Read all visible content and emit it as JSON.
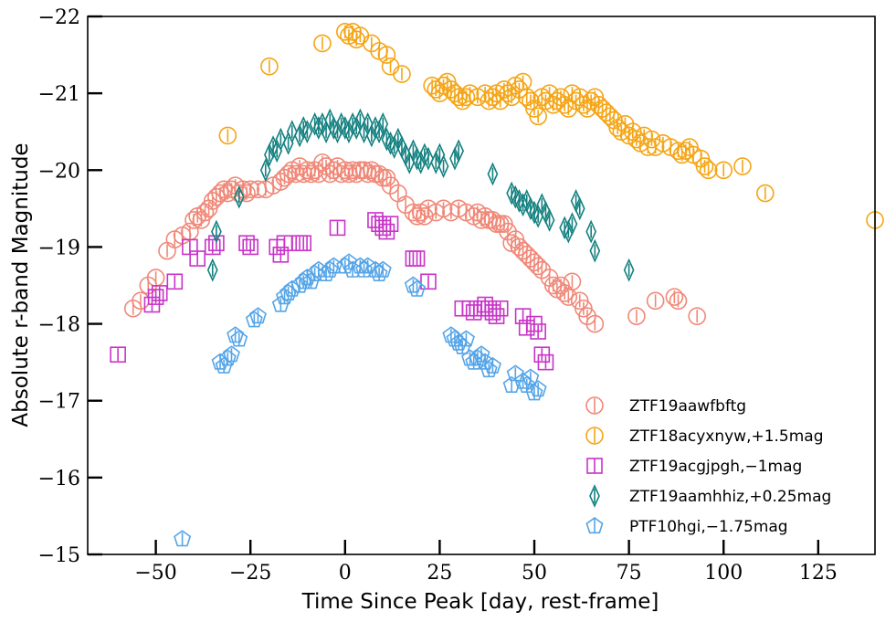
{
  "chart_data": {
    "type": "scatter",
    "title": "",
    "xlabel": "Time Since Peak [day, rest-frame]",
    "ylabel": "Absolute r-band Magnitude",
    "xlim": [
      -68,
      140
    ],
    "ylim": [
      -15,
      -22
    ],
    "y_inverted": true,
    "x_ticks": [
      -50,
      -25,
      0,
      25,
      50,
      75,
      100,
      125
    ],
    "x_tick_labels": [
      "−50",
      "−25",
      "0",
      "25",
      "50",
      "75",
      "100",
      "125"
    ],
    "y_ticks": [
      -22,
      -21,
      -20,
      -19,
      -18,
      -17,
      -16,
      -15
    ],
    "y_tick_labels": [
      "−22",
      "−21",
      "−20",
      "−19",
      "−18",
      "−17",
      "−16",
      "−15"
    ],
    "legend_position": "bottom-right",
    "series": [
      {
        "name": "ZTF19aawfbftg",
        "label": "ZTF19aawfbftg",
        "color": "#f08878",
        "marker": "circle",
        "x": [
          -56,
          -54,
          -52,
          -50,
          -47,
          -45,
          -43,
          -41,
          -40,
          -39,
          -38,
          -37,
          -36,
          -35,
          -34,
          -33,
          -32,
          -31,
          -30,
          -29,
          -28,
          -27,
          -26,
          -25,
          -23,
          -21,
          -19,
          -17,
          -16,
          -15,
          -14,
          -13,
          -12,
          -11,
          -10,
          -9,
          -8,
          -7,
          -6,
          -5,
          -4,
          -3,
          -2,
          -1,
          0,
          1,
          2,
          3,
          4,
          5,
          6,
          7,
          8,
          9,
          10,
          11,
          12,
          14,
          16,
          18,
          19,
          20,
          21,
          22,
          24,
          26,
          28,
          30,
          32,
          34,
          35,
          36,
          37,
          38,
          39,
          40,
          41,
          42,
          43,
          44,
          45,
          46,
          47,
          48,
          49,
          50,
          51,
          52,
          54,
          55,
          56,
          57,
          58,
          59,
          60,
          62,
          63,
          64,
          66,
          77,
          82,
          87,
          88,
          93
        ],
        "y": [
          -18.2,
          -18.3,
          -18.5,
          -18.6,
          -18.95,
          -19.1,
          -19.15,
          -19.2,
          -19.35,
          -19.4,
          -19.35,
          -19.45,
          -19.5,
          -19.6,
          -19.65,
          -19.7,
          -19.75,
          -19.7,
          -19.75,
          -19.8,
          -19.7,
          -19.75,
          -19.7,
          -19.75,
          -19.75,
          -19.75,
          -19.8,
          -19.85,
          -19.9,
          -19.95,
          -20.0,
          -19.95,
          -20.05,
          -19.95,
          -20.0,
          -19.95,
          -20.0,
          -19.95,
          -20.1,
          -20.05,
          -19.95,
          -20.0,
          -20.05,
          -19.95,
          -20.0,
          -19.95,
          -20.0,
          -19.95,
          -20.0,
          -20.0,
          -19.95,
          -20.0,
          -19.95,
          -19.95,
          -19.9,
          -19.9,
          -19.8,
          -19.7,
          -19.55,
          -19.45,
          -19.4,
          -19.45,
          -19.4,
          -19.5,
          -19.45,
          -19.5,
          -19.45,
          -19.5,
          -19.45,
          -19.4,
          -19.45,
          -19.35,
          -19.4,
          -19.35,
          -19.35,
          -19.3,
          -19.3,
          -19.3,
          -19.2,
          -19.05,
          -19.1,
          -19.0,
          -18.95,
          -18.9,
          -18.85,
          -18.8,
          -18.75,
          -18.7,
          -18.6,
          -18.5,
          -18.45,
          -18.5,
          -18.4,
          -18.35,
          -18.55,
          -18.3,
          -18.2,
          -18.1,
          -18.0,
          -18.1,
          -18.3,
          -18.35,
          -18.3,
          -18.1
        ]
      },
      {
        "name": "ZTF18acyxnyw",
        "label": "ZTF18acyxnyw,+1.5mag",
        "color": "#f5a515",
        "marker": "circle",
        "x": [
          -31,
          -20,
          -6,
          0,
          1,
          2,
          3,
          4,
          7,
          9,
          11,
          12,
          15,
          23,
          24,
          25,
          26,
          27,
          28,
          29,
          30,
          31,
          32,
          33,
          35,
          37,
          38,
          39,
          40,
          41,
          42,
          43,
          44,
          45,
          46,
          47,
          48,
          49,
          50,
          51,
          52,
          53,
          54,
          55,
          56,
          57,
          58,
          59,
          60,
          61,
          62,
          63,
          64,
          65,
          66,
          67,
          68,
          69,
          70,
          71,
          72,
          73,
          74,
          75,
          76,
          77,
          78,
          79,
          80,
          81,
          82,
          84,
          86,
          88,
          89,
          90,
          91,
          92,
          94,
          95,
          96,
          100,
          105,
          111,
          140
        ],
        "y": [
          -20.45,
          -21.35,
          -21.65,
          -21.8,
          -21.75,
          -21.8,
          -21.7,
          -21.75,
          -21.65,
          -21.55,
          -21.5,
          -21.35,
          -21.25,
          -21.1,
          -21.05,
          -21.0,
          -21.1,
          -21.15,
          -21.05,
          -21.0,
          -20.95,
          -20.9,
          -20.95,
          -21.0,
          -20.95,
          -21.0,
          -20.9,
          -20.95,
          -21.0,
          -20.9,
          -21.05,
          -21.0,
          -20.95,
          -21.1,
          -21.05,
          -21.15,
          -20.95,
          -20.9,
          -20.8,
          -20.7,
          -20.95,
          -20.9,
          -21.0,
          -20.85,
          -20.9,
          -20.95,
          -20.85,
          -20.8,
          -21.0,
          -20.9,
          -20.95,
          -20.85,
          -20.8,
          -20.9,
          -20.95,
          -20.85,
          -20.8,
          -20.75,
          -20.7,
          -20.65,
          -20.55,
          -20.5,
          -20.6,
          -20.45,
          -20.5,
          -20.4,
          -20.35,
          -20.45,
          -20.3,
          -20.4,
          -20.3,
          -20.35,
          -20.3,
          -20.25,
          -20.2,
          -20.25,
          -20.3,
          -20.2,
          -20.15,
          -20.05,
          -20.0,
          -20.0,
          -20.05,
          -19.7,
          -19.35
        ]
      },
      {
        "name": "ZTF19acgjpgh",
        "label": "ZTF19acgjpgh,−1mag",
        "color": "#c832c8",
        "marker": "square",
        "x": [
          -60,
          -51,
          -50,
          -49,
          -45,
          -41,
          -39,
          -35,
          -34,
          -26,
          -25,
          -18,
          -17,
          -16,
          -12,
          -11,
          -2,
          8,
          9,
          10,
          11,
          12,
          18,
          19,
          22,
          31,
          33,
          34,
          36,
          37,
          38,
          39,
          40,
          41,
          47,
          48,
          50,
          51,
          52,
          53
        ],
        "y": [
          -17.6,
          -18.25,
          -18.35,
          -18.4,
          -18.55,
          -19.0,
          -18.85,
          -19.0,
          -19.05,
          -19.05,
          -19.0,
          -19.0,
          -18.9,
          -19.05,
          -19.05,
          -19.05,
          -19.25,
          -19.35,
          -19.3,
          -19.25,
          -19.2,
          -19.3,
          -18.85,
          -18.85,
          -18.55,
          -18.2,
          -18.2,
          -18.15,
          -18.2,
          -18.25,
          -18.2,
          -18.15,
          -18.1,
          -18.2,
          -18.1,
          -17.95,
          -18.0,
          -17.9,
          -17.6,
          -17.5
        ]
      },
      {
        "name": "ZTF19aamhhiz",
        "label": "ZTF19aamhhiz,+0.25mag",
        "color": "#138080",
        "marker": "diamond",
        "x": [
          -35,
          -34,
          -28,
          -21,
          -20,
          -19,
          -18,
          -17,
          -15,
          -14,
          -12,
          -11,
          -10,
          -8,
          -7,
          -6,
          -5,
          -4,
          -3,
          -2,
          -1,
          0,
          1,
          2,
          3,
          4,
          5,
          6,
          7,
          8,
          9,
          10,
          11,
          12,
          13,
          14,
          15,
          16,
          17,
          18,
          19,
          20,
          21,
          22,
          24,
          25,
          26,
          29,
          30,
          39,
          44,
          45,
          46,
          47,
          48,
          49,
          50,
          51,
          52,
          53,
          54,
          58,
          59,
          60,
          61,
          62,
          65,
          66,
          75
        ],
        "y": [
          -18.7,
          -19.2,
          -19.65,
          -20.0,
          -20.2,
          -20.3,
          -20.25,
          -20.4,
          -20.35,
          -20.5,
          -20.45,
          -20.55,
          -20.5,
          -20.6,
          -20.55,
          -20.6,
          -20.5,
          -20.65,
          -20.55,
          -20.5,
          -20.6,
          -20.55,
          -20.5,
          -20.6,
          -20.55,
          -20.65,
          -20.5,
          -20.6,
          -20.45,
          -20.55,
          -20.5,
          -20.6,
          -20.4,
          -20.35,
          -20.3,
          -20.4,
          -20.3,
          -20.2,
          -20.1,
          -20.25,
          -20.15,
          -20.1,
          -20.2,
          -20.15,
          -20.1,
          -20.2,
          -20.05,
          -20.15,
          -20.25,
          -19.95,
          -19.7,
          -19.65,
          -19.6,
          -19.55,
          -19.6,
          -19.5,
          -19.45,
          -19.4,
          -19.55,
          -19.45,
          -19.35,
          -19.25,
          -19.2,
          -19.3,
          -19.6,
          -19.5,
          -19.2,
          -18.95,
          -18.7
        ]
      },
      {
        "name": "PTF10hgi",
        "label": "PTF10hgi,−1.75mag",
        "color": "#55a5e8",
        "marker": "pentagon",
        "x": [
          -43,
          -33,
          -32,
          -31,
          -30,
          -29,
          -28,
          -24,
          -23,
          -17,
          -16,
          -15,
          -14,
          -12,
          -11,
          -10,
          -9,
          -8,
          -7,
          -5,
          -4,
          -3,
          0,
          1,
          2,
          4,
          5,
          6,
          8,
          9,
          10,
          18,
          19,
          28,
          29,
          30,
          31,
          32,
          33,
          34,
          35,
          36,
          37,
          38,
          39,
          44,
          45,
          47,
          48,
          49,
          50,
          51
        ],
        "y": [
          -15.2,
          -17.5,
          -17.45,
          -17.55,
          -17.6,
          -17.85,
          -17.8,
          -18.05,
          -18.1,
          -18.25,
          -18.35,
          -18.4,
          -18.45,
          -18.5,
          -18.55,
          -18.6,
          -18.55,
          -18.65,
          -18.7,
          -18.65,
          -18.7,
          -18.75,
          -18.75,
          -18.8,
          -18.7,
          -18.75,
          -18.7,
          -18.75,
          -18.7,
          -18.65,
          -18.7,
          -18.5,
          -18.45,
          -17.85,
          -17.8,
          -17.75,
          -17.7,
          -17.8,
          -17.55,
          -17.5,
          -17.55,
          -17.6,
          -17.5,
          -17.4,
          -17.45,
          -17.2,
          -17.35,
          -17.25,
          -17.2,
          -17.3,
          -17.1,
          -17.15
        ]
      }
    ]
  }
}
